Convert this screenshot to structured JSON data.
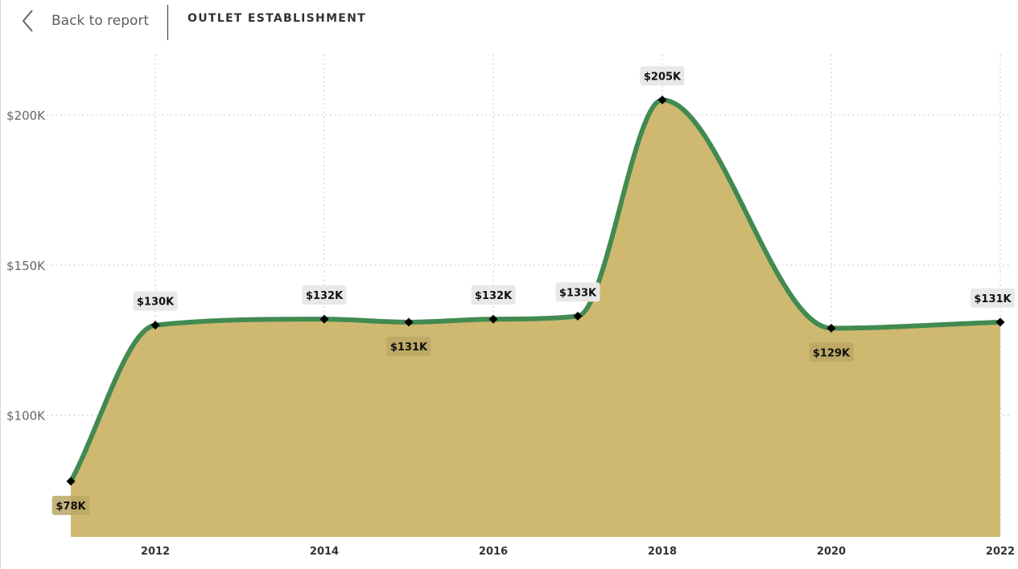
{
  "nav": {
    "back_label": "Back to report"
  },
  "header": {
    "title": "OUTLET ESTABLISHMENT"
  },
  "colors": {
    "area": "#cfb970",
    "line": "#428a51",
    "marker": "#000000",
    "label_bg": "#e8e8e8",
    "label_bg_inside": "#bba764",
    "grid": "#c8c8c8"
  },
  "chart_data": {
    "type": "area",
    "x": [
      2011,
      2012,
      2014,
      2015,
      2016,
      2017,
      2018,
      2020,
      2022
    ],
    "values": [
      78,
      130,
      132,
      131,
      132,
      133,
      205,
      129,
      131
    ],
    "data_labels": [
      "$78K",
      "$130K",
      "$132K",
      "$131K",
      "$132K",
      "$133K",
      "$205K",
      "$129K",
      "$131K"
    ],
    "label_positions": [
      "below",
      "above",
      "above",
      "below",
      "above",
      "above",
      "above",
      "below",
      "above"
    ],
    "xticks": [
      2012,
      2014,
      2016,
      2018,
      2020,
      2022
    ],
    "xtick_labels": [
      "2012",
      "2014",
      "2016",
      "2018",
      "2020",
      "2022"
    ],
    "yticks": [
      100,
      150,
      200
    ],
    "ytick_labels": [
      "$100K",
      "$150K",
      "$200K"
    ],
    "unit": "$K",
    "grid": true,
    "line_smooth": true
  }
}
